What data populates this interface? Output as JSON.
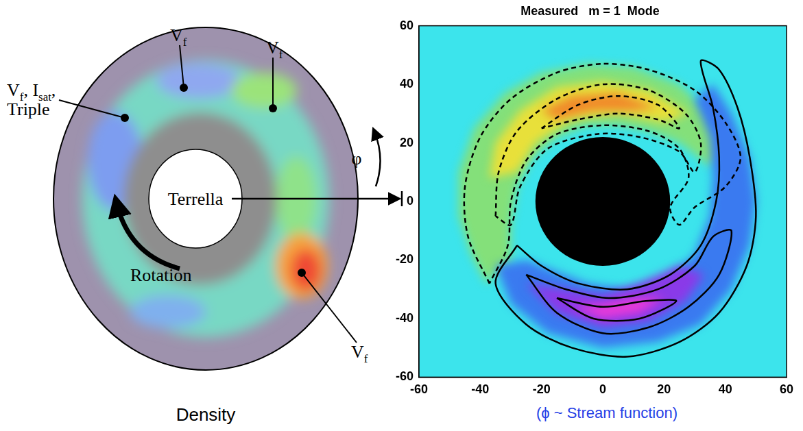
{
  "density_image": {
    "caption": "Density",
    "center_label": "Terrella",
    "rotation_label": "Rotation",
    "angle_label": "φ",
    "probe_labels": [
      [
        [
          {
            "text": "V"
          },
          {
            "text": "f",
            "sub": true
          }
        ]
      ],
      [
        [
          {
            "text": "V"
          },
          {
            "text": "f",
            "sub": true
          },
          {
            "text": ", "
          },
          {
            "text": "I"
          },
          {
            "text": "sat",
            "sub": true
          },
          {
            "text": ","
          }
        ],
        [
          {
            "text": "Triple"
          }
        ]
      ],
      [
        [
          {
            "text": "V"
          },
          {
            "text": "f",
            "sub": true
          }
        ]
      ],
      [
        [
          {
            "text": "V"
          },
          {
            "text": "f",
            "sub": true
          }
        ]
      ]
    ]
  },
  "chart_data": {
    "type": "contour",
    "title": "Measured   m = 1  Mode",
    "caption": "(ϕ ~ Stream function)",
    "xlim": [
      -60,
      60
    ],
    "ylim": [
      -60,
      60
    ],
    "xticks": [
      -60,
      -40,
      -20,
      0,
      20,
      40,
      60
    ],
    "yticks": [
      -60,
      -40,
      -20,
      0,
      20,
      40,
      60
    ],
    "grid": false,
    "color": "#3ce4ec",
    "terrella": {
      "x": 0,
      "y": 0,
      "radius": 22,
      "color": "#000000"
    },
    "lobes": [
      {
        "color": "#84e07a",
        "points": [
          [
            40,
            18
          ],
          [
            35,
            30
          ],
          [
            25,
            40
          ],
          [
            10,
            46
          ],
          [
            -5,
            47
          ],
          [
            -20,
            44
          ],
          [
            -32,
            37
          ],
          [
            -42,
            25
          ],
          [
            -47,
            10
          ],
          [
            -47,
            -5
          ],
          [
            -43,
            -18
          ],
          [
            -38,
            -28
          ],
          [
            -30,
            -20
          ],
          [
            -30,
            -8
          ],
          [
            -28,
            5
          ],
          [
            -23,
            15
          ],
          [
            -15,
            22
          ],
          [
            -5,
            26
          ],
          [
            5,
            26
          ],
          [
            15,
            24
          ],
          [
            25,
            20
          ],
          [
            35,
            12
          ]
        ]
      },
      {
        "color": "#e8e03a",
        "points": [
          [
            28,
            30
          ],
          [
            15,
            38
          ],
          [
            0,
            41
          ],
          [
            -15,
            39
          ],
          [
            -27,
            31
          ],
          [
            -35,
            20
          ],
          [
            -37,
            8
          ],
          [
            -28,
            10
          ],
          [
            -22,
            20
          ],
          [
            -10,
            28
          ],
          [
            5,
            30
          ],
          [
            20,
            27
          ]
        ]
      },
      {
        "color": "#f08a2a",
        "points": [
          [
            18,
            32
          ],
          [
            5,
            37
          ],
          [
            -10,
            36
          ],
          [
            -20,
            31
          ],
          [
            -15,
            28
          ],
          [
            -3,
            31
          ],
          [
            10,
            31
          ]
        ]
      },
      {
        "color": "#3a7af0",
        "points": [
          [
            -35,
            -22
          ],
          [
            -30,
            -35
          ],
          [
            -18,
            -45
          ],
          [
            0,
            -50
          ],
          [
            18,
            -48
          ],
          [
            32,
            -42
          ],
          [
            42,
            -30
          ],
          [
            48,
            -15
          ],
          [
            50,
            0
          ],
          [
            48,
            15
          ],
          [
            42,
            30
          ],
          [
            36,
            40
          ],
          [
            30,
            35
          ],
          [
            35,
            22
          ],
          [
            36,
            8
          ],
          [
            35,
            -5
          ],
          [
            30,
            -18
          ],
          [
            20,
            -27
          ],
          [
            8,
            -30
          ],
          [
            -5,
            -28
          ],
          [
            -15,
            -24
          ],
          [
            -25,
            -20
          ]
        ]
      },
      {
        "color": "#8a3ae8",
        "points": [
          [
            -25,
            -28
          ],
          [
            -15,
            -38
          ],
          [
            0,
            -43
          ],
          [
            15,
            -41
          ],
          [
            27,
            -34
          ],
          [
            33,
            -25
          ],
          [
            25,
            -22
          ],
          [
            12,
            -28
          ],
          [
            0,
            -32
          ],
          [
            -12,
            -30
          ]
        ]
      },
      {
        "color": "#e83ad8",
        "points": [
          [
            -10,
            -36
          ],
          [
            0,
            -40
          ],
          [
            12,
            -38
          ],
          [
            20,
            -33
          ],
          [
            10,
            -33
          ],
          [
            0,
            -35
          ]
        ]
      }
    ],
    "series": [
      {
        "color": "#000000",
        "line_style": "dashed",
        "points": [
          [
            -37,
            -28
          ],
          [
            -44,
            -12
          ],
          [
            -45,
            5
          ],
          [
            -40,
            22
          ],
          [
            -30,
            35
          ],
          [
            -15,
            44
          ],
          [
            0,
            47
          ],
          [
            15,
            45
          ],
          [
            30,
            38
          ],
          [
            40,
            27
          ],
          [
            45,
            15
          ],
          [
            40,
            5
          ],
          [
            30,
            -2
          ],
          [
            25,
            -8
          ],
          [
            22,
            -2
          ],
          [
            28,
            8
          ],
          [
            25,
            18
          ],
          [
            15,
            24
          ],
          [
            0,
            26
          ],
          [
            -15,
            23
          ],
          [
            -25,
            14
          ],
          [
            -30,
            0
          ],
          [
            -31,
            -15
          ],
          [
            -37,
            -28
          ]
        ]
      },
      {
        "color": "#000000",
        "line_style": "dashed",
        "points": [
          [
            -35,
            -5
          ],
          [
            -34,
            10
          ],
          [
            -28,
            24
          ],
          [
            -15,
            35
          ],
          [
            0,
            40
          ],
          [
            15,
            38
          ],
          [
            27,
            30
          ],
          [
            32,
            20
          ],
          [
            30,
            10
          ],
          [
            25,
            17
          ],
          [
            12,
            22
          ],
          [
            -2,
            23
          ],
          [
            -18,
            18
          ],
          [
            -27,
            5
          ],
          [
            -30,
            -8
          ],
          [
            -35,
            -5
          ]
        ]
      },
      {
        "color": "#000000",
        "line_style": "dashed",
        "points": [
          [
            -20,
            25
          ],
          [
            -8,
            33
          ],
          [
            5,
            36
          ],
          [
            18,
            33
          ],
          [
            25,
            25
          ],
          [
            18,
            28
          ],
          [
            5,
            30
          ],
          [
            -8,
            28
          ],
          [
            -20,
            25
          ]
        ]
      },
      {
        "color": "#000000",
        "line_style": "solid",
        "points": [
          [
            -28,
            -15
          ],
          [
            -35,
            -28
          ],
          [
            -25,
            -42
          ],
          [
            -10,
            -50
          ],
          [
            8,
            -53
          ],
          [
            25,
            -48
          ],
          [
            38,
            -38
          ],
          [
            47,
            -22
          ],
          [
            50,
            -5
          ],
          [
            48,
            15
          ],
          [
            44,
            32
          ],
          [
            38,
            45
          ],
          [
            32,
            48
          ],
          [
            36,
            32
          ],
          [
            38,
            15
          ],
          [
            37,
            0
          ],
          [
            32,
            -15
          ],
          [
            22,
            -25
          ],
          [
            8,
            -30
          ],
          [
            -8,
            -28
          ],
          [
            -20,
            -22
          ],
          [
            -28,
            -15
          ]
        ]
      },
      {
        "color": "#000000",
        "line_style": "solid",
        "points": [
          [
            -25,
            -25
          ],
          [
            -15,
            -38
          ],
          [
            0,
            -45
          ],
          [
            15,
            -43
          ],
          [
            28,
            -36
          ],
          [
            38,
            -25
          ],
          [
            42,
            -10
          ],
          [
            36,
            -12
          ],
          [
            30,
            -22
          ],
          [
            18,
            -30
          ],
          [
            2,
            -33
          ],
          [
            -12,
            -30
          ],
          [
            -25,
            -25
          ]
        ]
      },
      {
        "color": "#000000",
        "line_style": "solid",
        "points": [
          [
            -15,
            -33
          ],
          [
            -3,
            -40
          ],
          [
            12,
            -40
          ],
          [
            24,
            -34
          ],
          [
            14,
            -34
          ],
          [
            0,
            -36
          ],
          [
            -15,
            -33
          ]
        ]
      }
    ]
  }
}
